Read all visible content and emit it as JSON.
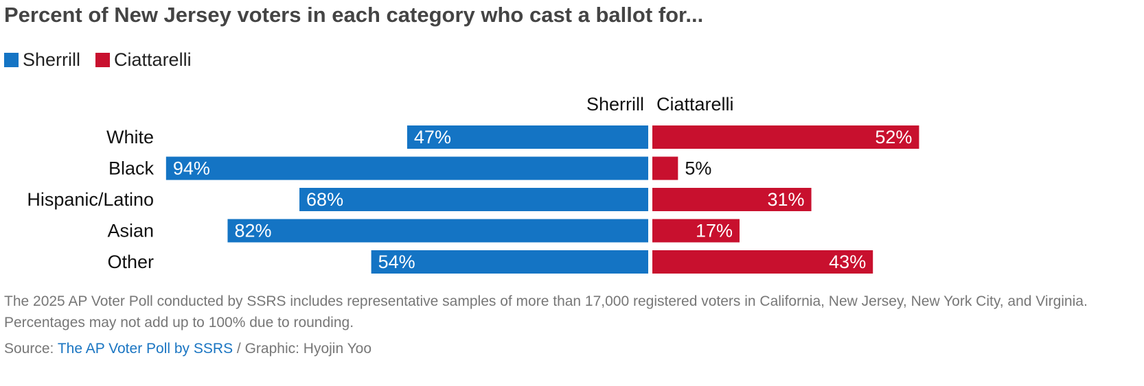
{
  "title": "Percent of New Jersey voters in each category who cast a ballot for...",
  "legend": [
    {
      "label": "Sherrill",
      "color": "#1474c4"
    },
    {
      "label": "Ciattarelli",
      "color": "#c8102e"
    }
  ],
  "chart_data": {
    "type": "bar",
    "orientation": "horizontal-diverging",
    "categories": [
      "White",
      "Black",
      "Hispanic/Latino",
      "Asian",
      "Other"
    ],
    "series": [
      {
        "name": "Sherrill",
        "values": [
          47,
          94,
          68,
          82,
          54
        ],
        "color": "#1474c4"
      },
      {
        "name": "Ciattarelli",
        "values": [
          52,
          5,
          31,
          17,
          43
        ],
        "color": "#c8102e"
      }
    ],
    "column_headers": [
      "Sherrill",
      "Ciattarelli"
    ],
    "value_suffix": "%",
    "xlim": [
      0,
      100
    ]
  },
  "note": "The 2025 AP Voter Poll conducted by SSRS includes representative samples of more than 17,000 registered voters in California, New Jersey, New York City, and Virginia. Percentages may not add up to 100% due to rounding.",
  "source": {
    "prefix": "Source: ",
    "link_text": "The AP Voter Poll by SSRS",
    "suffix": " / Graphic: Hyojin Yoo"
  }
}
